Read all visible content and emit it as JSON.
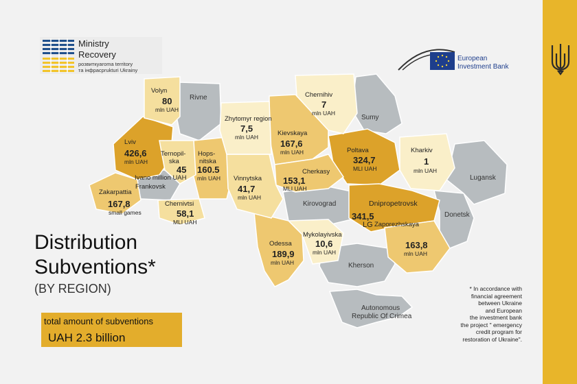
{
  "header": {
    "ministry_name_l1": "Ministry",
    "ministry_name_l2": "Recovery",
    "ministry_sub_l1": "розвиткуaroma territory",
    "ministry_sub_l2": "та інфрасprukturi Ukrainy",
    "eib_name_l1": "European",
    "eib_name_l2": "Investment Bank"
  },
  "title": {
    "line1": "Distribution",
    "line2": "Subventions*",
    "line3": "(BY REGION)"
  },
  "total": {
    "label": "total amount of subventions",
    "value": "UAH 2.3 billion"
  },
  "footnote": {
    "lines": [
      "* In accordance with",
      "financial agreement",
      "between Ukraine",
      "and European",
      "the investment bank",
      "the project \" emergency",
      "credit program for",
      "restoration of Ukraine\"."
    ]
  },
  "colors": {
    "gold_bar": "#e8b52a",
    "dark_region": "#dca22a",
    "mid_region": "#eec870",
    "light_region": "#f5df9e",
    "pale_region": "#faefc9",
    "no_data_region": "#b7bcbf"
  },
  "regions": {
    "volyn": {
      "name": "Volyn",
      "value": "80",
      "unit": "mln UAH"
    },
    "rivne": {
      "name": "Rivne"
    },
    "lviv": {
      "name": "Lviv",
      "value": "426,6",
      "unit": "mln UAH"
    },
    "ternopil": {
      "name_l1": "Ternopil-",
      "name_l2": "ska",
      "value": "45"
    },
    "khmelnytska": {
      "name_l1": "Hops-",
      "name_l2": "nitska",
      "value": "160.5",
      "unit": "mln UAH"
    },
    "ivano": {
      "name_l1": "Ivano million UAH",
      "name_l2": "Frankovsk"
    },
    "zakarpattia": {
      "name": "Zakarpattia",
      "value": "167,8",
      "unit": "small games"
    },
    "chernivtsi": {
      "name": "Chernivtsi",
      "value": "58,1",
      "unit": "MLI UAH"
    },
    "zhytomyr": {
      "name": "Zhytomyr region",
      "value": "7,5",
      "unit": "mln UAH"
    },
    "kyiv": {
      "name": "Kievskaya",
      "value": "167,6",
      "unit": "mln UAH"
    },
    "chernihiv": {
      "name": "Chernihiv",
      "value": "7",
      "unit": "mln UAH"
    },
    "sumy": {
      "name": "Sumy"
    },
    "poltava": {
      "name": "Poltava",
      "value": "324,7",
      "unit": "MLI UAH"
    },
    "kharkiv": {
      "name": "Kharkiv",
      "value": "1",
      "unit": "mln UAH"
    },
    "luhansk": {
      "name": "Lugansk"
    },
    "vinnytsia": {
      "name": "Vinnytska",
      "value": "41,7",
      "unit": "mln UAH"
    },
    "cherkasy": {
      "name": "Cherkasy",
      "value": "153,1",
      "unit": "MLI UAH"
    },
    "kirovohrad": {
      "name": "Kirovograd"
    },
    "dnipro": {
      "name": "Dnipropetrovsk",
      "value": "341,5",
      "unit": "LG"
    },
    "donetsk": {
      "name": "Donetsk"
    },
    "zaporizhzhia": {
      "name": "Zaporezhskaya",
      "value": "163,8",
      "unit": "mln UAH"
    },
    "odesa": {
      "name": "Odessa",
      "value": "189,9",
      "unit": "mln UAH"
    },
    "mykolaiv": {
      "name": "Mykolayivska",
      "value": "10,6",
      "unit": "mln UAH"
    },
    "kherson": {
      "name": "Kherson"
    },
    "crimea": {
      "name_l1": "Autonomous",
      "name_l2": "Republic Of Crimea"
    }
  }
}
